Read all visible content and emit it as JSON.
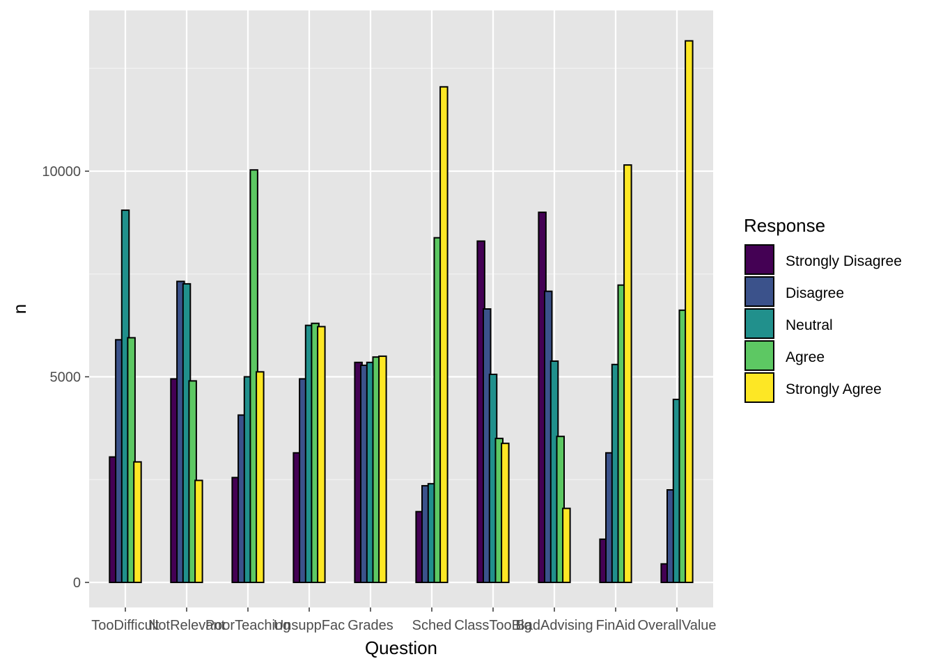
{
  "chart_data": {
    "type": "bar",
    "xlabel": "Question",
    "ylabel": "n",
    "ylim": [
      -600,
      13700
    ],
    "yticks": [
      0,
      5000,
      10000
    ],
    "grid": true,
    "legend_title": "Response",
    "legend_position": "right",
    "categories": [
      "TooDifficult",
      "NotRelevant",
      "PoorTeaching",
      "UnsuppFac",
      "Grades",
      "Sched",
      "ClassTooBig",
      "BadAdvising",
      "FinAid",
      "OverallValue"
    ],
    "series": [
      {
        "name": "Strongly Disagree",
        "color": "#440154",
        "values": [
          3050,
          4950,
          2550,
          3150,
          5350,
          1720,
          8300,
          9000,
          1050,
          450
        ]
      },
      {
        "name": "Disagree",
        "color": "#3B528B",
        "values": [
          5900,
          7320,
          4070,
          4950,
          5280,
          2350,
          6650,
          7080,
          3150,
          2250
        ]
      },
      {
        "name": "Neutral",
        "color": "#21908C",
        "values": [
          9050,
          7260,
          5000,
          6250,
          5350,
          2400,
          5060,
          5380,
          5300,
          4450
        ]
      },
      {
        "name": "Agree",
        "color": "#5DC863",
        "values": [
          5950,
          4900,
          10030,
          6300,
          5480,
          8380,
          3500,
          3550,
          7230,
          6620
        ]
      },
      {
        "name": "Strongly Agree",
        "color": "#FDE725",
        "values": [
          2930,
          2480,
          5120,
          6220,
          5500,
          12050,
          3380,
          1800,
          10150,
          13170
        ]
      }
    ]
  }
}
